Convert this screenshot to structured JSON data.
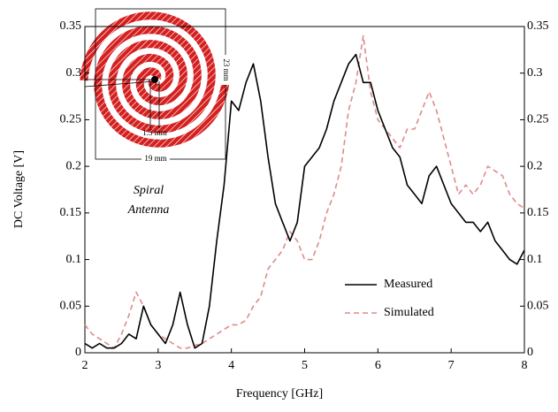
{
  "chart_data": {
    "type": "line",
    "xlabel": "Frequency [GHz]",
    "ylabel": "DC Voltage [V]",
    "x": [
      2.0,
      2.1,
      2.2,
      2.3,
      2.4,
      2.5,
      2.6,
      2.7,
      2.8,
      2.9,
      3.0,
      3.1,
      3.2,
      3.3,
      3.4,
      3.5,
      3.6,
      3.7,
      3.8,
      3.9,
      4.0,
      4.1,
      4.2,
      4.3,
      4.4,
      4.5,
      4.6,
      4.7,
      4.8,
      4.9,
      5.0,
      5.1,
      5.2,
      5.3,
      5.4,
      5.5,
      5.6,
      5.7,
      5.8,
      5.9,
      6.0,
      6.1,
      6.2,
      6.3,
      6.4,
      6.5,
      6.6,
      6.7,
      6.8,
      6.9,
      7.0,
      7.1,
      7.2,
      7.3,
      7.4,
      7.5,
      7.6,
      7.7,
      7.8,
      7.9,
      8.0
    ],
    "series": [
      {
        "name": "Measured",
        "color": "#000000",
        "dashed": false,
        "values": [
          0.01,
          0.005,
          0.01,
          0.005,
          0.005,
          0.01,
          0.02,
          0.015,
          0.05,
          0.03,
          0.02,
          0.01,
          0.03,
          0.065,
          0.03,
          0.005,
          0.01,
          0.05,
          0.12,
          0.18,
          0.27,
          0.26,
          0.29,
          0.31,
          0.27,
          0.21,
          0.16,
          0.14,
          0.12,
          0.14,
          0.2,
          0.21,
          0.22,
          0.24,
          0.27,
          0.29,
          0.31,
          0.32,
          0.29,
          0.29,
          0.26,
          0.24,
          0.22,
          0.21,
          0.18,
          0.17,
          0.16,
          0.19,
          0.2,
          0.18,
          0.16,
          0.15,
          0.14,
          0.14,
          0.13,
          0.14,
          0.12,
          0.11,
          0.1,
          0.095,
          0.11
        ]
      },
      {
        "name": "Simulated",
        "color": "#e08a8a",
        "dashed": true,
        "values": [
          0.03,
          0.02,
          0.015,
          0.01,
          0.005,
          0.02,
          0.04,
          0.065,
          0.05,
          0.03,
          0.02,
          0.015,
          0.01,
          0.005,
          0.005,
          0.008,
          0.01,
          0.015,
          0.02,
          0.025,
          0.03,
          0.03,
          0.035,
          0.05,
          0.06,
          0.09,
          0.1,
          0.11,
          0.13,
          0.12,
          0.1,
          0.1,
          0.12,
          0.15,
          0.17,
          0.2,
          0.26,
          0.29,
          0.34,
          0.28,
          0.25,
          0.24,
          0.23,
          0.22,
          0.24,
          0.24,
          0.26,
          0.28,
          0.26,
          0.23,
          0.2,
          0.17,
          0.18,
          0.17,
          0.18,
          0.2,
          0.195,
          0.19,
          0.17,
          0.16,
          0.155
        ]
      }
    ],
    "xlim": [
      2,
      8
    ],
    "xticks": [
      2,
      3,
      4,
      5,
      6,
      7,
      8
    ],
    "ylim": [
      0,
      0.35
    ],
    "yticks": [
      0,
      0.05,
      0.1,
      0.15,
      0.2,
      0.25,
      0.3,
      0.35
    ],
    "y2lim": [
      0,
      0.35
    ],
    "y2ticks": [
      0,
      0.05,
      0.1,
      0.15,
      0.2,
      0.25,
      0.3,
      0.35
    ],
    "legend": "lower right",
    "annotation_lines": [
      "Spiral",
      "Antenna"
    ],
    "inset_labels": [
      "23 mm",
      "19 mm",
      "1.5 mm"
    ]
  }
}
